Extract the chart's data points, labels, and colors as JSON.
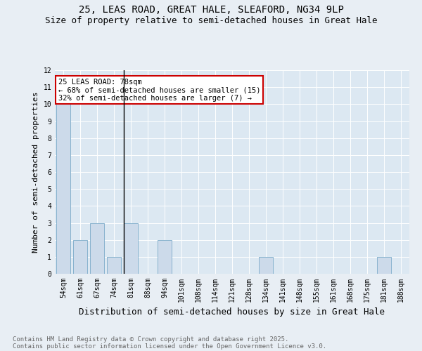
{
  "title1": "25, LEAS ROAD, GREAT HALE, SLEAFORD, NG34 9LP",
  "title2": "Size of property relative to semi-detached houses in Great Hale",
  "xlabel": "Distribution of semi-detached houses by size in Great Hale",
  "ylabel": "Number of semi-detached properties",
  "categories": [
    "54sqm",
    "61sqm",
    "67sqm",
    "74sqm",
    "81sqm",
    "88sqm",
    "94sqm",
    "101sqm",
    "108sqm",
    "114sqm",
    "121sqm",
    "128sqm",
    "134sqm",
    "141sqm",
    "148sqm",
    "155sqm",
    "161sqm",
    "168sqm",
    "175sqm",
    "181sqm",
    "188sqm"
  ],
  "values": [
    10,
    2,
    3,
    1,
    3,
    0,
    2,
    0,
    0,
    0,
    0,
    0,
    1,
    0,
    0,
    0,
    0,
    0,
    0,
    1,
    0
  ],
  "bar_color": "#ccdaea",
  "bar_edge_color": "#7aaac8",
  "annotation_text": "25 LEAS ROAD: 78sqm\n← 68% of semi-detached houses are smaller (15)\n32% of semi-detached houses are larger (7) →",
  "annotation_box_color": "#ffffff",
  "annotation_box_edge": "#cc0000",
  "vline_index": 4,
  "ylim": [
    0,
    12
  ],
  "yticks": [
    0,
    1,
    2,
    3,
    4,
    5,
    6,
    7,
    8,
    9,
    10,
    11,
    12
  ],
  "bg_color": "#e8eef4",
  "plot_bg_color": "#dce8f2",
  "footer1": "Contains HM Land Registry data © Crown copyright and database right 2025.",
  "footer2": "Contains public sector information licensed under the Open Government Licence v3.0.",
  "title_fontsize": 10,
  "subtitle_fontsize": 9,
  "axis_label_fontsize": 8,
  "tick_fontsize": 7,
  "annotation_fontsize": 7.5,
  "footer_fontsize": 6.5
}
